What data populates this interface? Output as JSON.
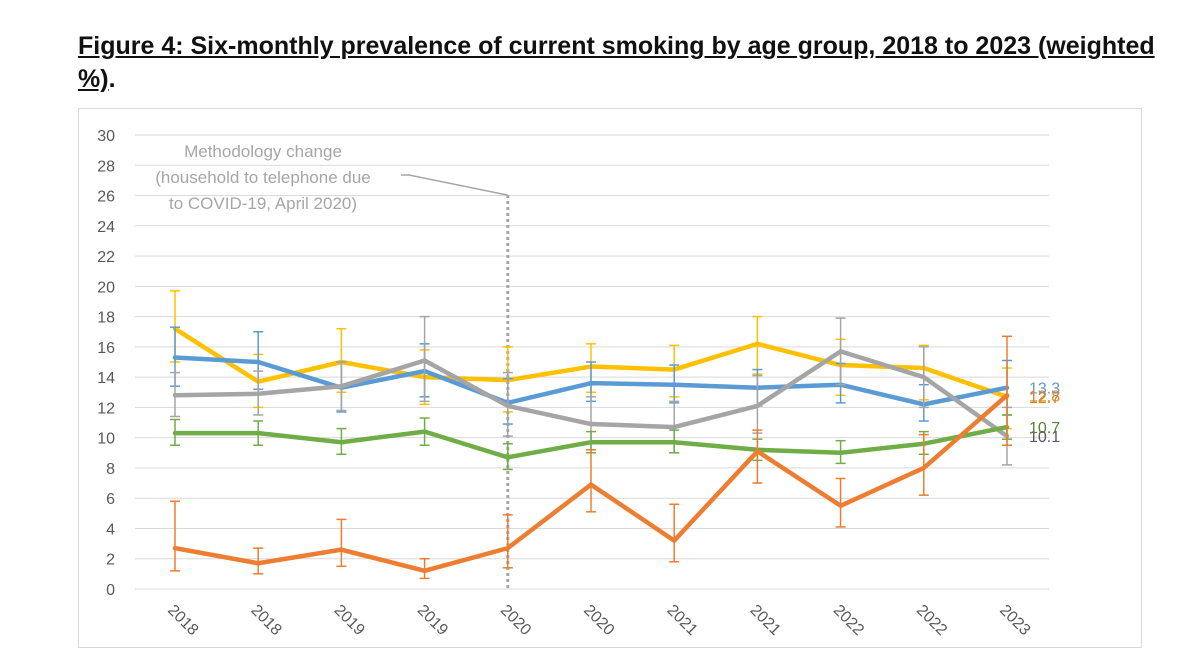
{
  "figure": {
    "title_main": "Figure 4: Six-monthly prevalence of current smoking by age group, 2018 to 2023 (weighted %)",
    "title_end": "."
  },
  "chart_data": {
    "type": "line",
    "title": "",
    "xlabel": "",
    "ylabel": "",
    "ylim": [
      0,
      30
    ],
    "yticks": [
      0,
      2,
      4,
      6,
      8,
      10,
      12,
      14,
      16,
      18,
      20,
      22,
      24,
      26,
      28,
      30
    ],
    "grid": true,
    "categories": [
      "2018",
      "2018",
      "2019",
      "2019",
      "2020",
      "2020",
      "2021",
      "2021",
      "2022",
      "2022",
      "2023"
    ],
    "annotation": {
      "lines": [
        "Methodology change",
        "(household to telephone due",
        "to COVID-19, April 2020)"
      ],
      "at_category_index": 4
    },
    "series": [
      {
        "color": "#ffc000",
        "values": [
          17.2,
          13.7,
          15.0,
          14.0,
          13.8,
          14.7,
          14.5,
          16.2,
          14.8,
          14.6,
          12.7
        ],
        "err_low": [
          15.0,
          12.0,
          13.0,
          12.2,
          11.7,
          13.0,
          12.7,
          14.2,
          12.8,
          12.5,
          10.6
        ],
        "err_high": [
          19.7,
          15.5,
          17.2,
          15.8,
          16.0,
          16.2,
          16.1,
          18.0,
          16.5,
          16.1,
          14.6
        ],
        "end_label": "12.7",
        "label_color": "#bf9000"
      },
      {
        "color": "#5b9bd5",
        "values": [
          15.3,
          15.0,
          13.3,
          14.4,
          12.3,
          13.6,
          13.5,
          13.3,
          13.5,
          12.2,
          13.3
        ],
        "err_low": [
          13.4,
          13.2,
          11.7,
          12.7,
          10.9,
          12.4,
          12.3,
          12.1,
          12.3,
          11.1,
          11.5
        ],
        "err_high": [
          17.3,
          17.0,
          15.0,
          16.2,
          13.9,
          15.0,
          14.8,
          14.5,
          14.9,
          13.5,
          15.1
        ],
        "end_label": "13.3",
        "label_color": "#5b9bd5"
      },
      {
        "color": "#a5a5a5",
        "values": [
          12.8,
          12.9,
          13.4,
          15.1,
          12.1,
          10.9,
          10.7,
          12.1,
          15.7,
          14.0,
          10.1
        ],
        "err_low": [
          11.4,
          11.5,
          11.8,
          12.4,
          10.1,
          9.2,
          9.0,
          10.3,
          13.5,
          12.0,
          8.2
        ],
        "err_high": [
          14.3,
          14.4,
          15.0,
          18.0,
          14.3,
          12.7,
          12.4,
          14.1,
          17.9,
          16.0,
          12.0
        ],
        "end_label": "10.1",
        "label_color": "#595959"
      },
      {
        "color": "#70ad47",
        "values": [
          10.3,
          10.3,
          9.7,
          10.4,
          8.7,
          9.7,
          9.7,
          9.2,
          9.0,
          9.6,
          10.7
        ],
        "err_low": [
          9.5,
          9.5,
          8.9,
          9.5,
          7.9,
          9.0,
          9.0,
          8.5,
          8.3,
          8.9,
          9.9
        ],
        "err_high": [
          11.2,
          11.1,
          10.6,
          11.3,
          9.6,
          10.4,
          10.5,
          9.9,
          9.8,
          10.4,
          11.5
        ],
        "end_label": "10.7",
        "label_color": "#548235"
      },
      {
        "color": "#ed7d31",
        "values": [
          2.7,
          1.7,
          2.6,
          1.2,
          2.7,
          6.9,
          3.2,
          9.1,
          5.5,
          8.0,
          12.8
        ],
        "err_low": [
          1.2,
          1.0,
          1.5,
          0.7,
          1.4,
          5.1,
          1.8,
          7.0,
          4.1,
          6.2,
          9.5
        ],
        "err_high": [
          5.8,
          2.7,
          4.6,
          2.0,
          4.9,
          9.2,
          5.6,
          10.5,
          7.3,
          10.2,
          16.7
        ],
        "end_label": "12.8",
        "label_color": "#ed7d31"
      }
    ]
  }
}
